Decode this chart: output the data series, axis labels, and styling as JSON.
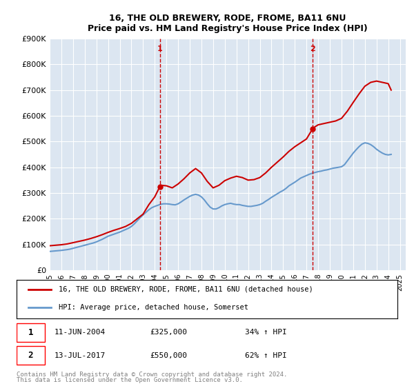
{
  "title": "16, THE OLD BREWERY, RODE, FROME, BA11 6NU",
  "subtitle": "Price paid vs. HM Land Registry's House Price Index (HPI)",
  "ylabel": "",
  "xlabel": "",
  "ylim": [
    0,
    900000
  ],
  "yticks": [
    0,
    100000,
    200000,
    300000,
    400000,
    500000,
    600000,
    700000,
    800000,
    900000
  ],
  "ytick_labels": [
    "£0",
    "£100K",
    "£200K",
    "£300K",
    "£400K",
    "£500K",
    "£600K",
    "£700K",
    "£800K",
    "£900K"
  ],
  "xlim_start": 1995.0,
  "xlim_end": 2025.5,
  "sale1_date": 2004.44,
  "sale1_price": 325000,
  "sale1_label": "1",
  "sale1_text": "11-JUN-2004",
  "sale1_price_text": "£325,000",
  "sale1_hpi_text": "34% ↑ HPI",
  "sale2_date": 2017.53,
  "sale2_price": 550000,
  "sale2_label": "2",
  "sale2_text": "13-JUL-2017",
  "sale2_price_text": "£550,000",
  "sale2_hpi_text": "62% ↑ HPI",
  "property_color": "#cc0000",
  "hpi_color": "#6699cc",
  "legend1_text": "16, THE OLD BREWERY, RODE, FROME, BA11 6NU (detached house)",
  "legend2_text": "HPI: Average price, detached house, Somerset",
  "footer1": "Contains HM Land Registry data © Crown copyright and database right 2024.",
  "footer2": "This data is licensed under the Open Government Licence v3.0.",
  "background_color": "#ffffff",
  "plot_bg_color": "#dce6f1",
  "hpi_data_x": [
    1995.0,
    1995.25,
    1995.5,
    1995.75,
    1996.0,
    1996.25,
    1996.5,
    1996.75,
    1997.0,
    1997.25,
    1997.5,
    1997.75,
    1998.0,
    1998.25,
    1998.5,
    1998.75,
    1999.0,
    1999.25,
    1999.5,
    1999.75,
    2000.0,
    2000.25,
    2000.5,
    2000.75,
    2001.0,
    2001.25,
    2001.5,
    2001.75,
    2002.0,
    2002.25,
    2002.5,
    2002.75,
    2003.0,
    2003.25,
    2003.5,
    2003.75,
    2004.0,
    2004.25,
    2004.5,
    2004.75,
    2005.0,
    2005.25,
    2005.5,
    2005.75,
    2006.0,
    2006.25,
    2006.5,
    2006.75,
    2007.0,
    2007.25,
    2007.5,
    2007.75,
    2008.0,
    2008.25,
    2008.5,
    2008.75,
    2009.0,
    2009.25,
    2009.5,
    2009.75,
    2010.0,
    2010.25,
    2010.5,
    2010.75,
    2011.0,
    2011.25,
    2011.5,
    2011.75,
    2012.0,
    2012.25,
    2012.5,
    2012.75,
    2013.0,
    2013.25,
    2013.5,
    2013.75,
    2014.0,
    2014.25,
    2014.5,
    2014.75,
    2015.0,
    2015.25,
    2015.5,
    2015.75,
    2016.0,
    2016.25,
    2016.5,
    2016.75,
    2017.0,
    2017.25,
    2017.5,
    2017.75,
    2018.0,
    2018.25,
    2018.5,
    2018.75,
    2019.0,
    2019.25,
    2019.5,
    2019.75,
    2020.0,
    2020.25,
    2020.5,
    2020.75,
    2021.0,
    2021.25,
    2021.5,
    2021.75,
    2022.0,
    2022.25,
    2022.5,
    2022.75,
    2023.0,
    2023.25,
    2023.5,
    2023.75,
    2024.0,
    2024.25
  ],
  "hpi_data_y": [
    73000,
    74000,
    75000,
    76000,
    77000,
    78500,
    80000,
    82000,
    85000,
    88000,
    91000,
    94000,
    97000,
    100000,
    103000,
    106000,
    110000,
    115000,
    120000,
    126000,
    132000,
    136000,
    140000,
    144000,
    148000,
    153000,
    158000,
    163000,
    170000,
    180000,
    192000,
    204000,
    215000,
    225000,
    235000,
    243000,
    248000,
    252000,
    256000,
    258000,
    258000,
    257000,
    255000,
    254000,
    258000,
    265000,
    273000,
    280000,
    287000,
    292000,
    295000,
    292000,
    285000,
    273000,
    258000,
    245000,
    238000,
    238000,
    243000,
    250000,
    255000,
    258000,
    260000,
    257000,
    255000,
    255000,
    252000,
    250000,
    248000,
    248000,
    250000,
    252000,
    255000,
    260000,
    268000,
    275000,
    283000,
    290000,
    297000,
    304000,
    310000,
    318000,
    328000,
    335000,
    342000,
    350000,
    358000,
    363000,
    368000,
    373000,
    377000,
    380000,
    383000,
    385000,
    388000,
    390000,
    393000,
    396000,
    398000,
    400000,
    402000,
    410000,
    425000,
    440000,
    455000,
    468000,
    480000,
    490000,
    495000,
    493000,
    488000,
    480000,
    470000,
    462000,
    455000,
    450000,
    448000,
    450000
  ],
  "property_data_x": [
    1995.0,
    1995.5,
    1996.0,
    1996.5,
    1997.0,
    1997.5,
    1998.0,
    1998.5,
    1999.0,
    1999.5,
    2000.0,
    2000.5,
    2001.0,
    2001.5,
    2002.0,
    2002.5,
    2003.0,
    2003.5,
    2004.0,
    2004.44,
    2004.5,
    2005.0,
    2005.5,
    2006.0,
    2006.5,
    2007.0,
    2007.5,
    2008.0,
    2008.5,
    2009.0,
    2009.5,
    2010.0,
    2010.5,
    2011.0,
    2011.5,
    2012.0,
    2012.5,
    2013.0,
    2013.5,
    2014.0,
    2014.5,
    2015.0,
    2015.5,
    2016.0,
    2016.5,
    2017.0,
    2017.53,
    2017.75,
    2018.0,
    2018.5,
    2019.0,
    2019.5,
    2020.0,
    2020.5,
    2021.0,
    2021.5,
    2022.0,
    2022.5,
    2023.0,
    2023.5,
    2024.0,
    2024.25
  ],
  "property_data_y": [
    95000,
    97000,
    99000,
    102000,
    107000,
    112000,
    117000,
    123000,
    130000,
    138000,
    147000,
    155000,
    162000,
    170000,
    182000,
    200000,
    218000,
    255000,
    285000,
    325000,
    330000,
    328000,
    320000,
    335000,
    355000,
    378000,
    395000,
    378000,
    345000,
    320000,
    330000,
    348000,
    358000,
    365000,
    360000,
    350000,
    352000,
    360000,
    378000,
    400000,
    420000,
    440000,
    462000,
    480000,
    495000,
    510000,
    550000,
    558000,
    565000,
    570000,
    575000,
    580000,
    590000,
    618000,
    652000,
    685000,
    715000,
    730000,
    735000,
    730000,
    725000,
    700000
  ]
}
